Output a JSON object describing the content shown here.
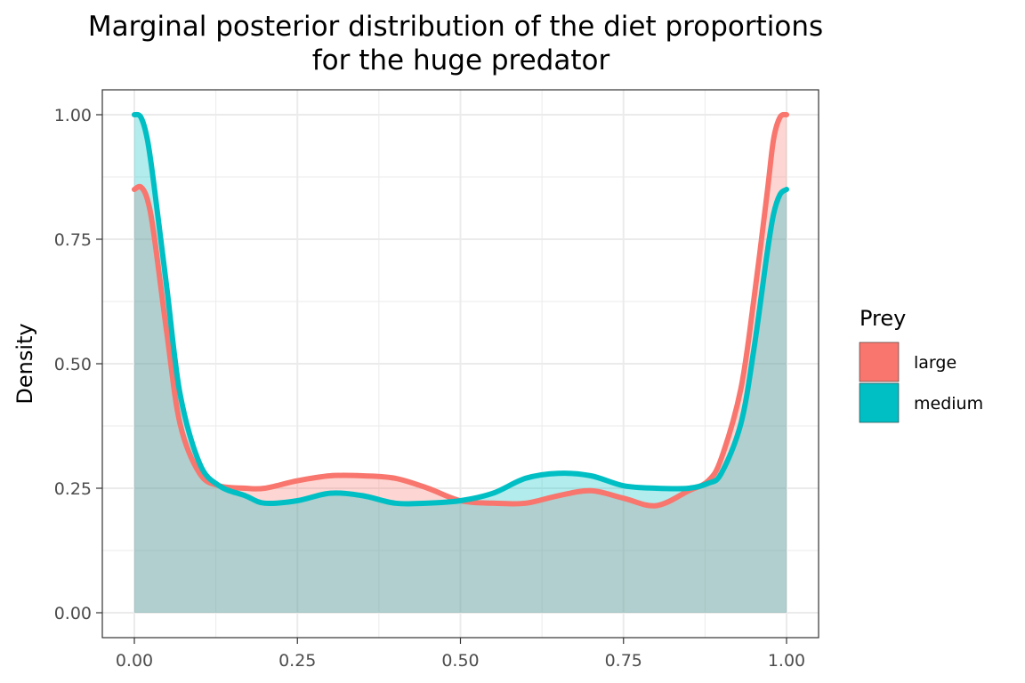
{
  "chart_data": {
    "type": "area",
    "title": "Marginal posterior distribution of the diet proportions for the huge predator",
    "title_lines": [
      "Marginal posterior distribution of the diet proportions",
      "for the huge predator"
    ],
    "xlabel": "",
    "ylabel": "Density",
    "xlim": [
      0,
      1
    ],
    "ylim": [
      0,
      1
    ],
    "x_ticks": [
      0,
      0.25,
      0.5,
      0.75,
      1
    ],
    "x_tick_labels": [
      "0.00",
      "0.25",
      "0.50",
      "0.75",
      "1.00"
    ],
    "y_ticks": [
      0,
      0.25,
      0.5,
      0.75,
      1
    ],
    "y_tick_labels": [
      "0.00",
      "0.25",
      "0.50",
      "0.75",
      "1.00"
    ],
    "grid": true,
    "legend": {
      "title": "Prey",
      "position": "right"
    },
    "x": [
      0,
      0.01,
      0.02,
      0.03,
      0.05,
      0.07,
      0.1,
      0.13,
      0.17,
      0.2,
      0.25,
      0.3,
      0.35,
      0.4,
      0.45,
      0.5,
      0.55,
      0.6,
      0.65,
      0.7,
      0.75,
      0.8,
      0.85,
      0.88,
      0.9,
      0.93,
      0.95,
      0.97,
      0.98,
      0.99,
      1.0
    ],
    "series": [
      {
        "name": "large",
        "color": "#F8766D",
        "values": [
          0.85,
          0.855,
          0.83,
          0.76,
          0.56,
          0.38,
          0.28,
          0.255,
          0.25,
          0.25,
          0.265,
          0.275,
          0.275,
          0.27,
          0.25,
          0.225,
          0.22,
          0.22,
          0.235,
          0.245,
          0.23,
          0.215,
          0.245,
          0.265,
          0.31,
          0.45,
          0.63,
          0.84,
          0.95,
          0.995,
          1.0
        ]
      },
      {
        "name": "medium",
        "color": "#00BFC4",
        "values": [
          1.0,
          0.995,
          0.95,
          0.86,
          0.65,
          0.44,
          0.3,
          0.255,
          0.235,
          0.22,
          0.225,
          0.24,
          0.235,
          0.22,
          0.22,
          0.225,
          0.24,
          0.27,
          0.28,
          0.275,
          0.255,
          0.25,
          0.25,
          0.26,
          0.28,
          0.38,
          0.53,
          0.72,
          0.8,
          0.84,
          0.85
        ]
      }
    ]
  }
}
